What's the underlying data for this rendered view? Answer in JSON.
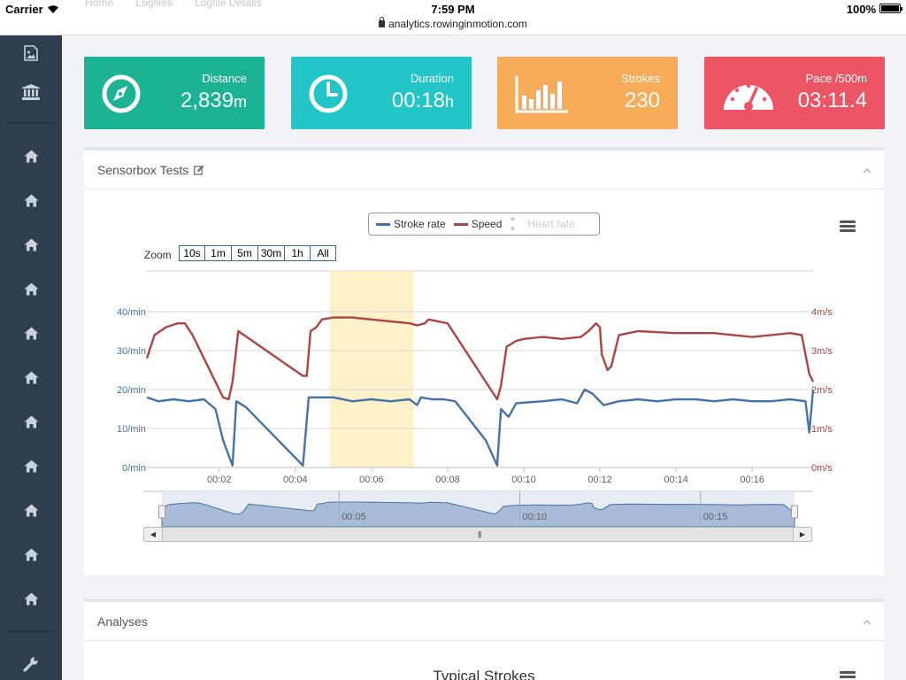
{
  "status_bar": {
    "carrier": "Carrier",
    "time": "7:59 PM",
    "url": "analytics.rowinginmotion.com",
    "battery": "100%",
    "battery_level": 1.0
  },
  "breadcrumbs": [
    "Home",
    "Logfiles",
    "Logfile Details"
  ],
  "sidebar": {
    "top_icons": [
      "image-icon",
      "bank-icon"
    ],
    "home_count": 11,
    "bottom_icon": "wrench-icon"
  },
  "tiles": [
    {
      "label": "Distance",
      "value": "2,839",
      "unit": "m",
      "color": "#1bb394",
      "icon": "compass-icon"
    },
    {
      "label": "Duration",
      "value": "00:18",
      "unit": "h",
      "color": "#23c6c8",
      "icon": "clock-icon"
    },
    {
      "label": "Strokes",
      "value": "230",
      "unit": "",
      "color": "#f8ac59",
      "icon": "bar-chart-icon"
    },
    {
      "label": "Pace /500m",
      "value": "03:11.4",
      "unit": "",
      "color": "#ed5565",
      "icon": "gauge-icon"
    }
  ],
  "sensor_panel": {
    "title": "Sensorbox Tests",
    "zoom_label": "Zoom",
    "zoom_buttons": [
      "10s",
      "1m",
      "5m",
      "30m",
      "1h",
      "All"
    ]
  },
  "analyses_panel": {
    "title": "Analyses",
    "chart_title": "Typical Strokes"
  },
  "chart_data": {
    "type": "line",
    "legend_placement": "top-center",
    "x_ticks": [
      "00:02",
      "00:04",
      "00:06",
      "00:08",
      "00:10",
      "00:12",
      "00:14",
      "00:16"
    ],
    "xlim_min": [
      0.1,
      17.6
    ],
    "y_left": {
      "ticks": [
        "0/min",
        "10/min",
        "20/min",
        "30/min",
        "40/min"
      ],
      "range": [
        0,
        40
      ],
      "color": "#4572a7"
    },
    "y_right": {
      "ticks": [
        "0m/s",
        "1m/s",
        "2m/s",
        "3m/s",
        "4m/s"
      ],
      "range": [
        0,
        4
      ],
      "color": "#aa4643"
    },
    "highlight_band_min": [
      4.9,
      7.1
    ],
    "series": [
      {
        "name": "Stroke rate",
        "color": "#4572a7",
        "axis": "left",
        "visible": true,
        "points": [
          [
            0.1,
            18
          ],
          [
            0.4,
            17
          ],
          [
            0.8,
            17.5
          ],
          [
            1.2,
            17
          ],
          [
            1.6,
            17.5
          ],
          [
            1.9,
            15
          ],
          [
            2.1,
            7
          ],
          [
            2.35,
            0.5
          ],
          [
            2.45,
            17
          ],
          [
            2.7,
            15.5
          ],
          [
            4.2,
            0.5
          ],
          [
            4.35,
            18
          ],
          [
            4.6,
            18
          ],
          [
            5.0,
            18
          ],
          [
            5.5,
            17
          ],
          [
            6.0,
            17.5
          ],
          [
            6.5,
            17
          ],
          [
            7.0,
            17.5
          ],
          [
            7.2,
            16
          ],
          [
            7.3,
            18
          ],
          [
            7.6,
            17.5
          ],
          [
            7.9,
            17.5
          ],
          [
            8.2,
            17
          ],
          [
            9.0,
            7
          ],
          [
            9.3,
            0.5
          ],
          [
            9.4,
            15
          ],
          [
            9.6,
            13
          ],
          [
            9.8,
            16.5
          ],
          [
            10.5,
            17
          ],
          [
            11.0,
            17.5
          ],
          [
            11.4,
            16.5
          ],
          [
            11.6,
            20
          ],
          [
            11.8,
            19
          ],
          [
            12.0,
            17
          ],
          [
            12.1,
            16
          ],
          [
            12.5,
            17
          ],
          [
            13.0,
            17.5
          ],
          [
            13.5,
            17
          ],
          [
            14.0,
            17.5
          ],
          [
            14.5,
            17.5
          ],
          [
            15.0,
            17
          ],
          [
            15.5,
            17.5
          ],
          [
            16.0,
            17
          ],
          [
            16.5,
            17
          ],
          [
            17.0,
            17.5
          ],
          [
            17.4,
            17
          ],
          [
            17.5,
            9
          ],
          [
            17.6,
            20
          ]
        ]
      },
      {
        "name": "Speed",
        "color": "#aa4643",
        "axis": "right",
        "visible": true,
        "points": [
          [
            0.1,
            2.8
          ],
          [
            0.3,
            3.4
          ],
          [
            0.6,
            3.6
          ],
          [
            0.9,
            3.7
          ],
          [
            1.1,
            3.7
          ],
          [
            1.3,
            3.4
          ],
          [
            2.1,
            1.8
          ],
          [
            2.25,
            1.75
          ],
          [
            2.35,
            2.2
          ],
          [
            2.5,
            3.5
          ],
          [
            4.2,
            2.35
          ],
          [
            4.3,
            2.35
          ],
          [
            4.4,
            3.5
          ],
          [
            4.55,
            3.6
          ],
          [
            4.7,
            3.8
          ],
          [
            5.0,
            3.85
          ],
          [
            5.5,
            3.85
          ],
          [
            6.0,
            3.8
          ],
          [
            6.5,
            3.75
          ],
          [
            7.0,
            3.7
          ],
          [
            7.2,
            3.65
          ],
          [
            7.4,
            3.7
          ],
          [
            7.5,
            3.8
          ],
          [
            8.0,
            3.7
          ],
          [
            9.2,
            1.9
          ],
          [
            9.3,
            1.75
          ],
          [
            9.4,
            2.1
          ],
          [
            9.55,
            3.1
          ],
          [
            9.8,
            3.25
          ],
          [
            10.0,
            3.3
          ],
          [
            10.5,
            3.35
          ],
          [
            11.0,
            3.3
          ],
          [
            11.5,
            3.35
          ],
          [
            11.7,
            3.5
          ],
          [
            11.9,
            3.7
          ],
          [
            12.0,
            3.6
          ],
          [
            12.05,
            2.9
          ],
          [
            12.2,
            2.5
          ],
          [
            12.3,
            2.6
          ],
          [
            12.5,
            3.4
          ],
          [
            13.0,
            3.5
          ],
          [
            14.0,
            3.45
          ],
          [
            15.0,
            3.45
          ],
          [
            15.5,
            3.4
          ],
          [
            16.0,
            3.35
          ],
          [
            16.5,
            3.4
          ],
          [
            17.0,
            3.45
          ],
          [
            17.3,
            3.4
          ],
          [
            17.5,
            2.4
          ],
          [
            17.6,
            2.2
          ]
        ]
      },
      {
        "name": "Heart rate",
        "color": "#cccccc",
        "axis": "left",
        "visible": false,
        "points": []
      }
    ],
    "navigator": {
      "ticks": [
        "00:05",
        "00:10",
        "00:15"
      ]
    }
  }
}
